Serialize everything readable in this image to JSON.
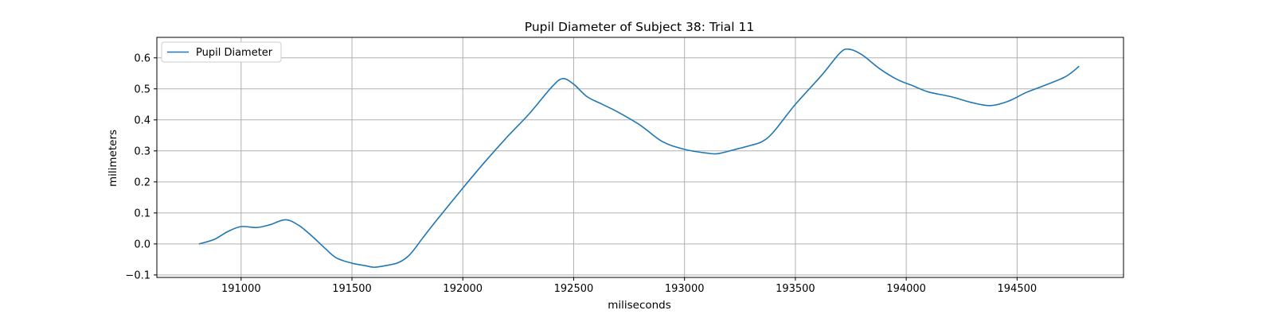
{
  "chart_data": {
    "type": "line",
    "title": "Pupil Diameter of Subject 38: Trial 11",
    "xlabel": "miliseconds",
    "ylabel": "milimeters",
    "xlim": [
      190620,
      194980
    ],
    "ylim": [
      -0.108,
      0.666
    ],
    "xticks": [
      191000,
      191500,
      192000,
      192500,
      193000,
      193500,
      194000,
      194500
    ],
    "yticks": [
      -0.1,
      0.0,
      0.1,
      0.2,
      0.3,
      0.4,
      0.5,
      0.6
    ],
    "ytick_labels": [
      "−0.1",
      "0.0",
      "0.1",
      "0.2",
      "0.3",
      "0.4",
      "0.5",
      "0.6"
    ],
    "grid": true,
    "legend_position": "upper-left",
    "colors": {
      "series": "#1f77b4",
      "grid": "#b0b0b0"
    },
    "series": [
      {
        "name": "Pupil Diameter",
        "x": [
          190810,
          190880,
          190940,
          191000,
          191070,
          191130,
          191200,
          191260,
          191320,
          191380,
          191430,
          191500,
          191560,
          191600,
          191650,
          191710,
          191760,
          191820,
          191880,
          192000,
          192100,
          192200,
          192300,
          192400,
          192450,
          192500,
          192560,
          192630,
          192700,
          192800,
          192900,
          193000,
          193100,
          193150,
          193220,
          193300,
          193350,
          193400,
          193500,
          193620,
          193700,
          193740,
          193800,
          193880,
          193960,
          194030,
          194100,
          194200,
          194300,
          194380,
          194460,
          194540,
          194620,
          194720,
          194780
        ],
        "y": [
          0.0,
          0.015,
          0.04,
          0.056,
          0.053,
          0.062,
          0.078,
          0.06,
          0.025,
          -0.015,
          -0.045,
          -0.062,
          -0.07,
          -0.075,
          -0.07,
          -0.06,
          -0.035,
          0.02,
          0.075,
          0.18,
          0.265,
          0.345,
          0.42,
          0.505,
          0.533,
          0.515,
          0.475,
          0.45,
          0.425,
          0.383,
          0.33,
          0.305,
          0.293,
          0.291,
          0.303,
          0.318,
          0.33,
          0.36,
          0.45,
          0.545,
          0.615,
          0.628,
          0.61,
          0.565,
          0.53,
          0.51,
          0.49,
          0.475,
          0.455,
          0.446,
          0.46,
          0.488,
          0.51,
          0.54,
          0.573
        ]
      }
    ]
  }
}
